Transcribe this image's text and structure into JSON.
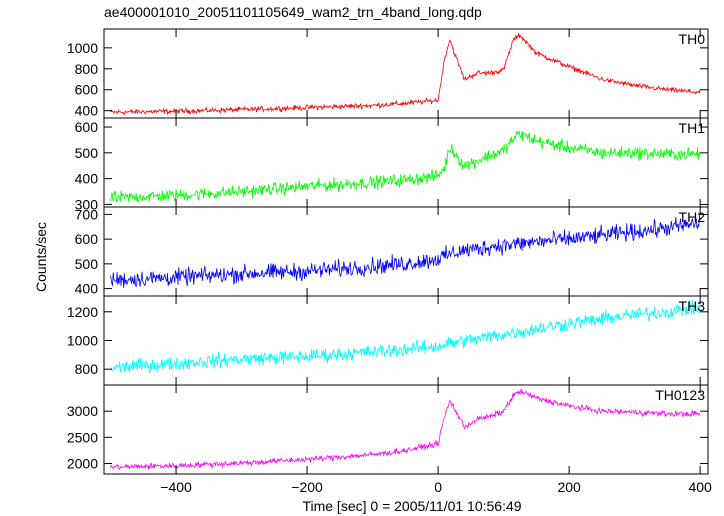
{
  "chart_data": {
    "type": "line",
    "title": "ae400001010_20051101105649_wam2_trn_4band_long.qdp",
    "xlabel": "Time [sec] 0 = 2005/11/01 10:56:49",
    "ylabel": "Counts/sec",
    "xlim": [
      -510,
      412
    ],
    "x_ticks": [
      -400,
      -200,
      0,
      200,
      400
    ],
    "x_tick_labels": [
      "−400",
      "−200",
      "0",
      "200",
      "400"
    ],
    "x_shared": [
      -500,
      -400,
      -300,
      -200,
      -100,
      -50,
      0,
      10,
      18,
      25,
      40,
      60,
      80,
      100,
      115,
      125,
      150,
      200,
      250,
      300,
      350,
      400
    ],
    "grid": false,
    "panels": [
      {
        "name": "TH0",
        "color": "#ff0000",
        "ylim": [
          330,
          1180
        ],
        "y_ticks": [
          400,
          600,
          800,
          1000
        ],
        "y_tick_labels": [
          "400",
          "600",
          "800",
          "1000"
        ],
        "noise": 20,
        "values": [
          385,
          395,
          410,
          430,
          450,
          470,
          500,
          900,
          1080,
          950,
          700,
          760,
          760,
          790,
          1080,
          1120,
          950,
          820,
          700,
          640,
          600,
          575
        ]
      },
      {
        "name": "TH1",
        "color": "#00ff00",
        "ylim": [
          290,
          635
        ],
        "y_ticks": [
          300,
          400,
          500,
          600
        ],
        "y_tick_labels": [
          "300",
          "400",
          "500",
          "600"
        ],
        "noise": 20,
        "values": [
          325,
          335,
          350,
          370,
          385,
          395,
          410,
          445,
          520,
          500,
          450,
          470,
          490,
          510,
          555,
          575,
          545,
          520,
          500,
          500,
          495,
          495
        ]
      },
      {
        "name": "TH2",
        "color": "#0000ff",
        "ylim": [
          370,
          730
        ],
        "y_ticks": [
          400,
          500,
          600,
          700
        ],
        "y_tick_labels": [
          "400",
          "500",
          "600",
          "700"
        ],
        "noise": 28,
        "values": [
          435,
          445,
          460,
          470,
          490,
          500,
          520,
          530,
          540,
          545,
          555,
          560,
          570,
          575,
          580,
          580,
          590,
          600,
          615,
          630,
          645,
          665
        ]
      },
      {
        "name": "TH3",
        "color": "#00ffff",
        "ylim": [
          690,
          1310
        ],
        "y_ticks": [
          800,
          1000,
          1200
        ],
        "y_tick_labels": [
          "800",
          "1000",
          "1200"
        ],
        "noise": 40,
        "values": [
          810,
          840,
          870,
          890,
          920,
          940,
          960,
          970,
          980,
          985,
          1000,
          1010,
          1030,
          1040,
          1055,
          1060,
          1080,
          1120,
          1150,
          1180,
          1200,
          1230
        ]
      },
      {
        "name": "TH0123",
        "color": "#ff00ff",
        "ylim": [
          1800,
          3500
        ],
        "y_ticks": [
          2000,
          2500,
          3000
        ],
        "y_tick_labels": [
          "2000",
          "2500",
          "3000"
        ],
        "noise": 45,
        "values": [
          1930,
          1960,
          2010,
          2080,
          2170,
          2250,
          2380,
          2900,
          3200,
          3050,
          2700,
          2850,
          2900,
          3000,
          3300,
          3380,
          3250,
          3100,
          3000,
          2980,
          2950,
          2950
        ]
      }
    ]
  }
}
